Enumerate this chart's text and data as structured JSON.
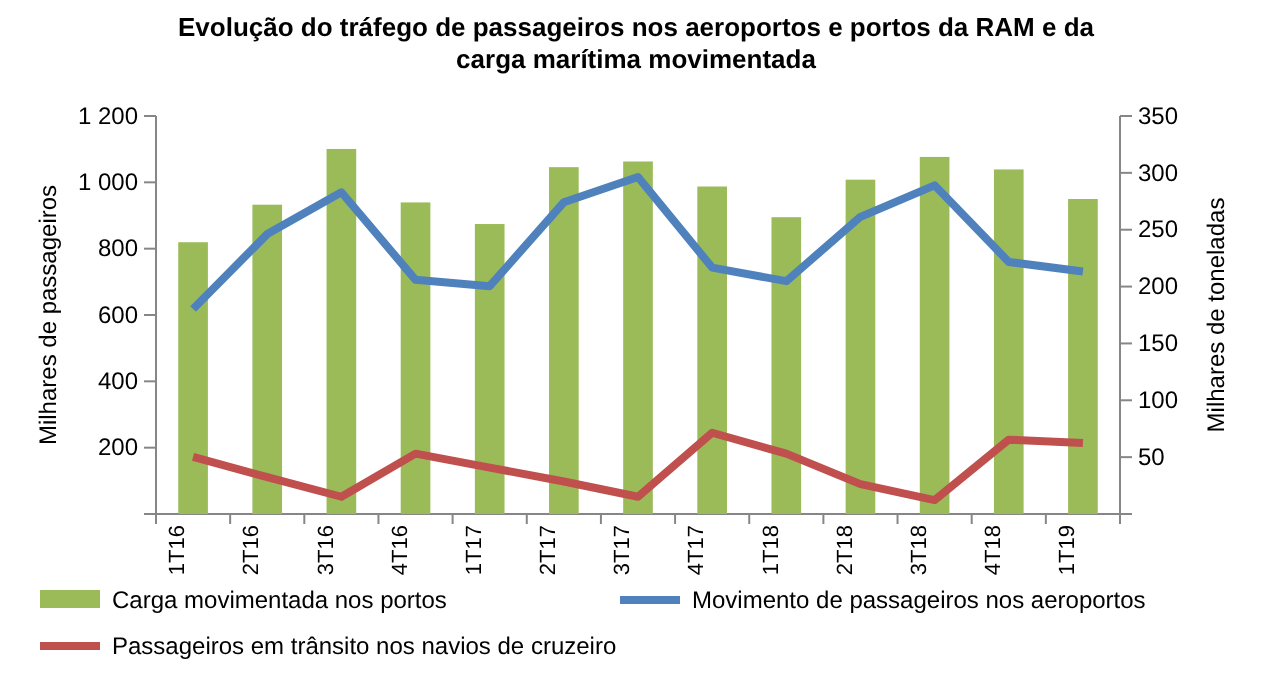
{
  "chart_data": {
    "type": "bar",
    "title": "Evolução do tráfego de passageiros  nos aeroportos e portos da RAM e da carga marítima movimentada",
    "ylabel": "Milhares de passageiros",
    "y2label": "Milhares de toneladas",
    "categories": [
      "1T16",
      "2T16",
      "3T16",
      "4T16",
      "1T17",
      "2T17",
      "3T17",
      "4T17",
      "1T18",
      "2T18",
      "3T18",
      "4T18",
      "1T19"
    ],
    "series": [
      {
        "name": "Carga movimentada nos portos",
        "axis": "y2",
        "color": "#9bbb59",
        "values": [
          239,
          272,
          321,
          274,
          255,
          305,
          310,
          288,
          261,
          294,
          314,
          303,
          277
        ]
      },
      {
        "name": "Movimento de passageiros nos aeroportos",
        "type": "line",
        "color": "#4f81bd",
        "values": [
          618,
          844,
          970,
          706,
          687,
          940,
          1016,
          743,
          702,
          896,
          991,
          760,
          731
        ]
      },
      {
        "name": "Passageiros em trânsito nos navios de cruzeiro",
        "type": "line",
        "color": "#c0504d",
        "values": [
          172,
          111,
          52,
          182,
          140,
          98,
          52,
          245,
          182,
          90,
          42,
          224,
          214
        ]
      }
    ],
    "ylim": [
      0,
      1200
    ],
    "yticks": [
      {
        "value": 0,
        "label": null
      },
      200,
      400,
      600,
      800,
      {
        "value": 1000,
        "label": "1 000"
      },
      {
        "value": 1200,
        "label": "1 200"
      }
    ],
    "y2lim": [
      0,
      350
    ],
    "y2ticks": [
      {
        "value": 0,
        "label": null
      },
      50,
      100,
      150,
      200,
      250,
      300,
      350
    ],
    "legend": "bottom",
    "grid": false,
    "marker": "none",
    "line_style": "solid"
  }
}
